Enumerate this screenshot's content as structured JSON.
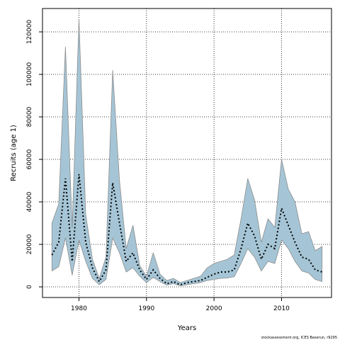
{
  "chart_data": {
    "type": "area",
    "title": "",
    "xlabel": "Years",
    "ylabel": "Recruits (age 1)",
    "xlim": [
      1974.6,
      2017.4
    ],
    "ylim": [
      -5000,
      131000
    ],
    "x_ticks": [
      1980,
      1990,
      2000,
      2010
    ],
    "y_ticks": [
      0,
      20000,
      40000,
      60000,
      80000,
      100000,
      120000
    ],
    "grid": true,
    "band_color": "#a5c5d6",
    "band_stroke": "#8c8c8c",
    "line_color": "#000000",
    "x": [
      1976,
      1977,
      1978,
      1979,
      1980,
      1981,
      1982,
      1983,
      1984,
      1985,
      1986,
      1987,
      1988,
      1989,
      1990,
      1991,
      1992,
      1993,
      1994,
      1995,
      1996,
      1997,
      1998,
      1999,
      2000,
      2001,
      2002,
      2003,
      2004,
      2005,
      2006,
      2007,
      2008,
      2009,
      2010,
      2011,
      2012,
      2013,
      2014,
      2015,
      2016
    ],
    "series": [
      {
        "name": "upper",
        "values": [
          30000,
          39000,
          113000,
          28000,
          126000,
          34000,
          13000,
          4000,
          14000,
          102000,
          50000,
          18000,
          29000,
          10000,
          5000,
          16000,
          6000,
          3000,
          4000,
          2000,
          3000,
          4000,
          5000,
          9000,
          11000,
          12000,
          13000,
          15000,
          32000,
          51000,
          41000,
          21000,
          32000,
          28000,
          60000,
          46000,
          40000,
          25000,
          26000,
          17000,
          19000
        ]
      },
      {
        "name": "estimate",
        "values": [
          15000,
          21000,
          51000,
          12000,
          53000,
          21000,
          9000,
          2500,
          8000,
          49000,
          30000,
          12000,
          16000,
          8000,
          3500,
          8000,
          4000,
          1500,
          2500,
          1000,
          2000,
          2500,
          3000,
          4500,
          6000,
          7000,
          7000,
          8000,
          18000,
          30000,
          24000,
          13000,
          20000,
          18000,
          37000,
          29000,
          21000,
          14000,
          13000,
          8000,
          7000
        ]
      },
      {
        "name": "lower",
        "values": [
          7500,
          9500,
          23000,
          5500,
          22000,
          12000,
          4000,
          1000,
          3500,
          23000,
          16000,
          7000,
          9000,
          5000,
          2000,
          4500,
          2500,
          800,
          1500,
          500,
          1000,
          1500,
          2000,
          3000,
          3500,
          4000,
          4200,
          4800,
          11000,
          18000,
          14000,
          7500,
          12000,
          11000,
          22000,
          18000,
          12000,
          7500,
          6500,
          3500,
          2500
        ]
      }
    ]
  },
  "credit": "stockassessment.org, ICES Baserun, r9295"
}
